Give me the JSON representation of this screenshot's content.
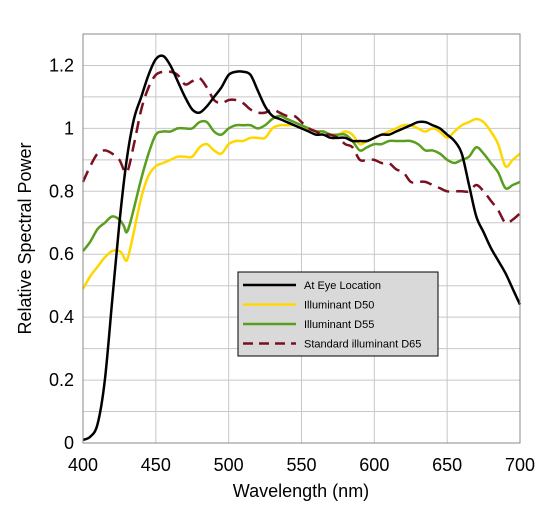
{
  "chart_data": {
    "type": "line",
    "xlabel": "Wavelength (nm)",
    "ylabel": "Relative Spectral Power",
    "xlim": [
      400,
      700
    ],
    "ylim": [
      0,
      1.3
    ],
    "x_ticks": [
      "400",
      "450",
      "500",
      "550",
      "600",
      "650",
      "700"
    ],
    "y_ticks": [
      "0",
      "0.2",
      "0.4",
      "0.6",
      "0.8",
      "1",
      "1.2"
    ],
    "grid": true,
    "legend_position": "lower-right",
    "series": [
      {
        "name": "At Eye Location",
        "color": "#000000",
        "dash": "solid",
        "points": [
          [
            400,
            0.01
          ],
          [
            405,
            0.02
          ],
          [
            410,
            0.06
          ],
          [
            415,
            0.2
          ],
          [
            420,
            0.45
          ],
          [
            425,
            0.7
          ],
          [
            430,
            0.9
          ],
          [
            435,
            1.03
          ],
          [
            440,
            1.1
          ],
          [
            445,
            1.17
          ],
          [
            450,
            1.22
          ],
          [
            455,
            1.23
          ],
          [
            460,
            1.2
          ],
          [
            465,
            1.15
          ],
          [
            470,
            1.1
          ],
          [
            475,
            1.06
          ],
          [
            480,
            1.05
          ],
          [
            485,
            1.07
          ],
          [
            490,
            1.1
          ],
          [
            495,
            1.13
          ],
          [
            500,
            1.17
          ],
          [
            505,
            1.18
          ],
          [
            510,
            1.18
          ],
          [
            515,
            1.17
          ],
          [
            520,
            1.12
          ],
          [
            525,
            1.07
          ],
          [
            530,
            1.04
          ],
          [
            535,
            1.03
          ],
          [
            540,
            1.02
          ],
          [
            545,
            1.01
          ],
          [
            550,
            1.0
          ],
          [
            555,
            0.99
          ],
          [
            560,
            0.98
          ],
          [
            565,
            0.98
          ],
          [
            570,
            0.97
          ],
          [
            575,
            0.97
          ],
          [
            580,
            0.97
          ],
          [
            585,
            0.96
          ],
          [
            590,
            0.96
          ],
          [
            595,
            0.96
          ],
          [
            600,
            0.97
          ],
          [
            605,
            0.98
          ],
          [
            610,
            0.98
          ],
          [
            615,
            0.99
          ],
          [
            620,
            1.0
          ],
          [
            625,
            1.01
          ],
          [
            630,
            1.02
          ],
          [
            635,
            1.02
          ],
          [
            640,
            1.01
          ],
          [
            645,
            1.0
          ],
          [
            650,
            0.98
          ],
          [
            655,
            0.96
          ],
          [
            660,
            0.92
          ],
          [
            665,
            0.82
          ],
          [
            670,
            0.72
          ],
          [
            675,
            0.67
          ],
          [
            680,
            0.62
          ],
          [
            685,
            0.58
          ],
          [
            690,
            0.54
          ],
          [
            695,
            0.49
          ],
          [
            700,
            0.44
          ]
        ]
      },
      {
        "name": "Illuminant D50",
        "color": "#ffd700",
        "dash": "solid",
        "points": [
          [
            400,
            0.49
          ],
          [
            405,
            0.53
          ],
          [
            410,
            0.56
          ],
          [
            415,
            0.59
          ],
          [
            420,
            0.61
          ],
          [
            425,
            0.61
          ],
          [
            427,
            0.6
          ],
          [
            430,
            0.58
          ],
          [
            433,
            0.63
          ],
          [
            440,
            0.78
          ],
          [
            445,
            0.85
          ],
          [
            450,
            0.88
          ],
          [
            455,
            0.89
          ],
          [
            460,
            0.9
          ],
          [
            465,
            0.91
          ],
          [
            470,
            0.91
          ],
          [
            475,
            0.91
          ],
          [
            480,
            0.94
          ],
          [
            485,
            0.95
          ],
          [
            490,
            0.93
          ],
          [
            495,
            0.92
          ],
          [
            500,
            0.95
          ],
          [
            505,
            0.96
          ],
          [
            510,
            0.96
          ],
          [
            515,
            0.97
          ],
          [
            520,
            0.97
          ],
          [
            525,
            0.97
          ],
          [
            530,
            1.0
          ],
          [
            535,
            1.01
          ],
          [
            540,
            1.01
          ],
          [
            545,
            1.01
          ],
          [
            550,
            1.0
          ],
          [
            555,
            1.0
          ],
          [
            560,
            0.99
          ],
          [
            565,
            0.99
          ],
          [
            570,
            0.98
          ],
          [
            575,
            0.98
          ],
          [
            580,
            0.99
          ],
          [
            585,
            0.98
          ],
          [
            590,
            0.95
          ],
          [
            595,
            0.96
          ],
          [
            600,
            0.97
          ],
          [
            605,
            0.98
          ],
          [
            610,
            0.99
          ],
          [
            615,
            1.0
          ],
          [
            620,
            1.01
          ],
          [
            625,
            1.01
          ],
          [
            630,
            1.0
          ],
          [
            635,
            0.99
          ],
          [
            640,
            1.0
          ],
          [
            645,
            0.99
          ],
          [
            650,
            0.97
          ],
          [
            655,
            0.99
          ],
          [
            660,
            1.01
          ],
          [
            665,
            1.02
          ],
          [
            670,
            1.03
          ],
          [
            675,
            1.02
          ],
          [
            680,
            0.99
          ],
          [
            685,
            0.95
          ],
          [
            690,
            0.88
          ],
          [
            695,
            0.9
          ],
          [
            700,
            0.92
          ]
        ]
      },
      {
        "name": "Illuminant D55",
        "color": "#5a9e20",
        "dash": "solid",
        "points": [
          [
            400,
            0.61
          ],
          [
            405,
            0.64
          ],
          [
            410,
            0.68
          ],
          [
            415,
            0.7
          ],
          [
            420,
            0.72
          ],
          [
            425,
            0.71
          ],
          [
            428,
            0.69
          ],
          [
            430,
            0.67
          ],
          [
            433,
            0.71
          ],
          [
            440,
            0.84
          ],
          [
            445,
            0.92
          ],
          [
            450,
            0.98
          ],
          [
            455,
            0.99
          ],
          [
            460,
            0.99
          ],
          [
            465,
            1.0
          ],
          [
            470,
            1.0
          ],
          [
            475,
            1.0
          ],
          [
            480,
            1.02
          ],
          [
            485,
            1.02
          ],
          [
            490,
            0.99
          ],
          [
            495,
            0.98
          ],
          [
            500,
            1.0
          ],
          [
            505,
            1.01
          ],
          [
            510,
            1.01
          ],
          [
            515,
            1.01
          ],
          [
            520,
            1.0
          ],
          [
            525,
            1.01
          ],
          [
            530,
            1.03
          ],
          [
            535,
            1.04
          ],
          [
            540,
            1.03
          ],
          [
            545,
            1.02
          ],
          [
            550,
            1.01
          ],
          [
            555,
            1.0
          ],
          [
            560,
            0.99
          ],
          [
            565,
            0.99
          ],
          [
            570,
            0.98
          ],
          [
            575,
            0.98
          ],
          [
            580,
            0.98
          ],
          [
            585,
            0.96
          ],
          [
            590,
            0.93
          ],
          [
            595,
            0.94
          ],
          [
            600,
            0.95
          ],
          [
            605,
            0.95
          ],
          [
            610,
            0.96
          ],
          [
            615,
            0.96
          ],
          [
            620,
            0.96
          ],
          [
            625,
            0.96
          ],
          [
            630,
            0.95
          ],
          [
            635,
            0.93
          ],
          [
            640,
            0.93
          ],
          [
            645,
            0.92
          ],
          [
            650,
            0.9
          ],
          [
            655,
            0.89
          ],
          [
            660,
            0.9
          ],
          [
            665,
            0.91
          ],
          [
            670,
            0.94
          ],
          [
            675,
            0.92
          ],
          [
            680,
            0.89
          ],
          [
            685,
            0.86
          ],
          [
            690,
            0.81
          ],
          [
            695,
            0.82
          ],
          [
            700,
            0.83
          ]
        ]
      },
      {
        "name": "Standard illuminant D65",
        "color": "#7a1020",
        "dash": "dashed",
        "points": [
          [
            400,
            0.83
          ],
          [
            405,
            0.88
          ],
          [
            410,
            0.92
          ],
          [
            415,
            0.93
          ],
          [
            420,
            0.92
          ],
          [
            425,
            0.9
          ],
          [
            430,
            0.86
          ],
          [
            435,
            0.95
          ],
          [
            440,
            1.06
          ],
          [
            445,
            1.13
          ],
          [
            450,
            1.17
          ],
          [
            455,
            1.18
          ],
          [
            460,
            1.18
          ],
          [
            465,
            1.17
          ],
          [
            470,
            1.14
          ],
          [
            475,
            1.15
          ],
          [
            480,
            1.16
          ],
          [
            485,
            1.13
          ],
          [
            490,
            1.09
          ],
          [
            495,
            1.08
          ],
          [
            500,
            1.09
          ],
          [
            505,
            1.09
          ],
          [
            510,
            1.08
          ],
          [
            515,
            1.06
          ],
          [
            520,
            1.05
          ],
          [
            525,
            1.05
          ],
          [
            530,
            1.06
          ],
          [
            535,
            1.05
          ],
          [
            540,
            1.04
          ],
          [
            545,
            1.04
          ],
          [
            550,
            1.02
          ],
          [
            555,
            1.0
          ],
          [
            560,
            0.99
          ],
          [
            565,
            0.98
          ],
          [
            570,
            0.98
          ],
          [
            575,
            0.97
          ],
          [
            580,
            0.95
          ],
          [
            585,
            0.94
          ],
          [
            590,
            0.9
          ],
          [
            595,
            0.9
          ],
          [
            600,
            0.9
          ],
          [
            605,
            0.89
          ],
          [
            610,
            0.89
          ],
          [
            615,
            0.87
          ],
          [
            620,
            0.86
          ],
          [
            625,
            0.83
          ],
          [
            630,
            0.83
          ],
          [
            635,
            0.83
          ],
          [
            640,
            0.82
          ],
          [
            645,
            0.81
          ],
          [
            650,
            0.8
          ],
          [
            655,
            0.8
          ],
          [
            660,
            0.8
          ],
          [
            665,
            0.8
          ],
          [
            670,
            0.82
          ],
          [
            675,
            0.8
          ],
          [
            680,
            0.77
          ],
          [
            685,
            0.74
          ],
          [
            690,
            0.7
          ],
          [
            695,
            0.71
          ],
          [
            700,
            0.73
          ]
        ]
      }
    ]
  }
}
